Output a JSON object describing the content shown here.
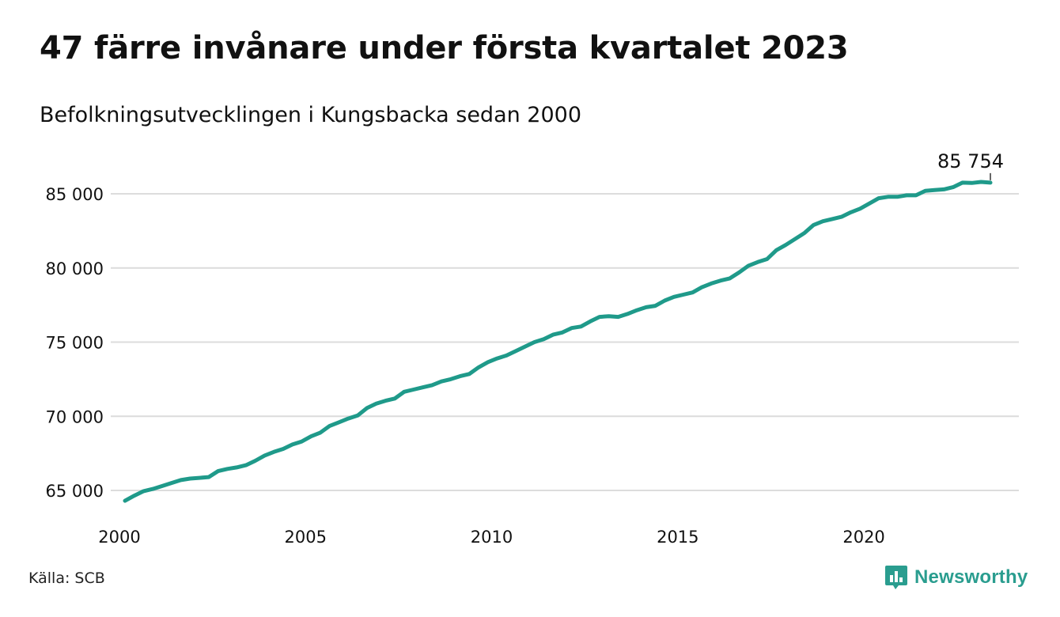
{
  "header": {
    "title": "47 färre invånare under första kvartalet 2023",
    "subtitle": "Befolkningsutvecklingen i Kungsbacka sedan 2000"
  },
  "footer": {
    "source": "Källa: SCB",
    "brand": "Newsworthy"
  },
  "colors": {
    "line": "#1f9a8a",
    "grid": "#dcdcdc",
    "brand": "#2a9d8f"
  },
  "chart_data": {
    "type": "line",
    "series": [
      {
        "values": [
          [
            2000.0,
            64300
          ],
          [
            2000.25,
            64650
          ],
          [
            2000.5,
            64950
          ],
          [
            2000.75,
            65100
          ],
          [
            2001.0,
            65300
          ],
          [
            2001.25,
            65500
          ],
          [
            2001.5,
            65700
          ],
          [
            2001.75,
            65800
          ],
          [
            2002.0,
            65850
          ],
          [
            2002.25,
            65900
          ],
          [
            2002.5,
            66300
          ],
          [
            2002.75,
            66450
          ],
          [
            2003.0,
            66550
          ],
          [
            2003.25,
            66700
          ],
          [
            2003.5,
            67000
          ],
          [
            2003.75,
            67350
          ],
          [
            2004.0,
            67600
          ],
          [
            2004.25,
            67800
          ],
          [
            2004.5,
            68100
          ],
          [
            2004.75,
            68300
          ],
          [
            2005.0,
            68650
          ],
          [
            2005.25,
            68900
          ],
          [
            2005.5,
            69350
          ],
          [
            2005.75,
            69600
          ],
          [
            2006.0,
            69850
          ],
          [
            2006.25,
            70050
          ],
          [
            2006.5,
            70550
          ],
          [
            2006.75,
            70850
          ],
          [
            2007.0,
            71050
          ],
          [
            2007.25,
            71200
          ],
          [
            2007.5,
            71650
          ],
          [
            2007.75,
            71800
          ],
          [
            2008.0,
            71950
          ],
          [
            2008.25,
            72100
          ],
          [
            2008.5,
            72350
          ],
          [
            2008.75,
            72500
          ],
          [
            2009.0,
            72700
          ],
          [
            2009.25,
            72850
          ],
          [
            2009.5,
            73300
          ],
          [
            2009.75,
            73650
          ],
          [
            2010.0,
            73900
          ],
          [
            2010.25,
            74100
          ],
          [
            2010.5,
            74400
          ],
          [
            2010.75,
            74700
          ],
          [
            2011.0,
            75000
          ],
          [
            2011.25,
            75200
          ],
          [
            2011.5,
            75500
          ],
          [
            2011.75,
            75650
          ],
          [
            2012.0,
            75950
          ],
          [
            2012.25,
            76050
          ],
          [
            2012.5,
            76400
          ],
          [
            2012.75,
            76700
          ],
          [
            2013.0,
            76750
          ],
          [
            2013.25,
            76700
          ],
          [
            2013.5,
            76900
          ],
          [
            2013.75,
            77150
          ],
          [
            2014.0,
            77350
          ],
          [
            2014.25,
            77450
          ],
          [
            2014.5,
            77800
          ],
          [
            2014.75,
            78050
          ],
          [
            2015.0,
            78200
          ],
          [
            2015.25,
            78350
          ],
          [
            2015.5,
            78700
          ],
          [
            2015.75,
            78950
          ],
          [
            2016.0,
            79150
          ],
          [
            2016.25,
            79300
          ],
          [
            2016.5,
            79700
          ],
          [
            2016.75,
            80150
          ],
          [
            2017.0,
            80400
          ],
          [
            2017.25,
            80600
          ],
          [
            2017.5,
            81200
          ],
          [
            2017.75,
            81550
          ],
          [
            2018.0,
            81950
          ],
          [
            2018.25,
            82350
          ],
          [
            2018.5,
            82900
          ],
          [
            2018.75,
            83150
          ],
          [
            2019.0,
            83300
          ],
          [
            2019.25,
            83450
          ],
          [
            2019.5,
            83750
          ],
          [
            2019.75,
            84000
          ],
          [
            2020.0,
            84350
          ],
          [
            2020.25,
            84700
          ],
          [
            2020.5,
            84800
          ],
          [
            2020.75,
            84800
          ],
          [
            2021.0,
            84900
          ],
          [
            2021.25,
            84900
          ],
          [
            2021.5,
            85200
          ],
          [
            2021.75,
            85250
          ],
          [
            2022.0,
            85300
          ],
          [
            2022.25,
            85450
          ],
          [
            2022.5,
            85750
          ],
          [
            2022.75,
            85730
          ],
          [
            2023.0,
            85801
          ],
          [
            2023.25,
            85754
          ]
        ]
      }
    ],
    "last_value_label": "85 754",
    "x_ticks": [
      2000,
      2005,
      2010,
      2015,
      2020
    ],
    "x_tick_labels": [
      "2000",
      "2005",
      "2010",
      "2015",
      "2020"
    ],
    "y_ticks": [
      65000,
      70000,
      75000,
      80000,
      85000
    ],
    "y_tick_labels": [
      "65 000",
      "70 000",
      "75 000",
      "80 000",
      "85 000"
    ],
    "xlim": [
      2000,
      2023.25
    ],
    "ylim": [
      65000,
      85000
    ],
    "grid": "horizontal"
  }
}
